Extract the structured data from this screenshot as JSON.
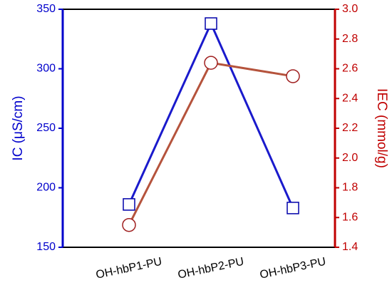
{
  "chart_data": {
    "type": "line",
    "categories": [
      "OH-hbP1-PU",
      "OH-hbP2-PU",
      "OH-hbP3-PU"
    ],
    "ylabel": "IC (μS/cm)",
    "y2label": "IEC (mmol/g)",
    "ylim": [
      150,
      350
    ],
    "yticks": [
      150,
      200,
      250,
      300,
      350
    ],
    "ycolor": "#0000cc",
    "y2lim": [
      1.4,
      3.0
    ],
    "y2ticks": [
      1.4,
      1.6,
      1.8,
      {
        "value": 2,
        "label": "2.0"
      },
      2.2,
      2.4,
      2.6,
      2.8,
      {
        "value": 3,
        "label": "3.0"
      }
    ],
    "y2color": "#c00000",
    "series": [
      {
        "color": "#1a1acc",
        "marker": "square",
        "values": [
          186,
          338,
          183
        ]
      },
      {
        "color": "#b5533c",
        "marker": "circle",
        "axis": "y2",
        "values": [
          1.55,
          2.64,
          2.55
        ]
      }
    ]
  }
}
